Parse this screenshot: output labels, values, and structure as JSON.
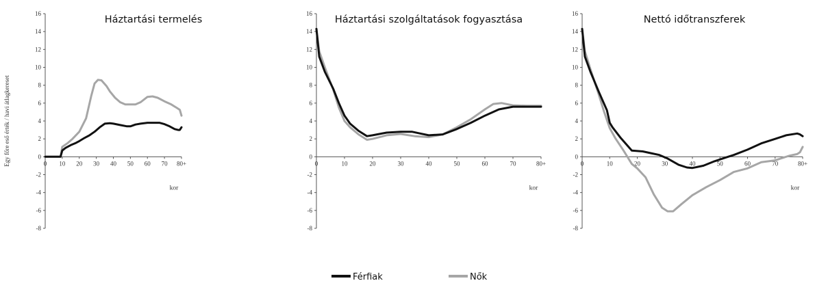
{
  "y_axis_label": "Egy főre eső érték / havi átlagkereset",
  "legend": [
    {
      "label": "Férfiak",
      "color": "#111111"
    },
    {
      "label": "Nők",
      "color": "#a6a6a6"
    }
  ],
  "chart_data": [
    {
      "type": "line",
      "title": "Háztartási termelés",
      "xlabel": "kor",
      "ylim": [
        -8,
        16
      ],
      "xlim": [
        0,
        80
      ],
      "x_ticks": [
        "0",
        "10",
        "20",
        "30",
        "40",
        "50",
        "60",
        "70",
        "80+"
      ],
      "y_ticks": [
        -8,
        -6,
        -4,
        -2,
        0,
        2,
        4,
        6,
        8,
        10,
        12,
        14,
        16
      ],
      "series": [
        {
          "name": "Férfiak",
          "color": "#111111",
          "x": [
            0,
            9,
            10,
            12,
            15,
            18,
            20,
            23,
            26,
            29,
            32,
            35,
            38,
            40,
            44,
            48,
            50,
            53,
            56,
            60,
            64,
            67,
            70,
            73,
            76,
            78,
            79,
            80
          ],
          "y": [
            0,
            0,
            0.7,
            1.0,
            1.3,
            1.55,
            1.75,
            2.1,
            2.4,
            2.8,
            3.3,
            3.7,
            3.75,
            3.7,
            3.55,
            3.4,
            3.4,
            3.6,
            3.7,
            3.8,
            3.8,
            3.8,
            3.65,
            3.4,
            3.1,
            3.0,
            3.0,
            3.3
          ]
        },
        {
          "name": "Nők",
          "color": "#a6a6a6",
          "x": [
            0,
            9,
            10,
            13,
            16,
            20,
            24,
            27,
            29,
            31,
            33,
            36,
            38,
            41,
            44,
            47,
            50,
            53,
            56,
            60,
            63,
            66,
            70,
            74,
            77,
            79,
            80
          ],
          "y": [
            0,
            0,
            1.1,
            1.5,
            2.0,
            2.8,
            4.3,
            6.8,
            8.2,
            8.6,
            8.55,
            7.9,
            7.3,
            6.6,
            6.1,
            5.85,
            5.85,
            5.85,
            6.1,
            6.7,
            6.75,
            6.6,
            6.2,
            5.85,
            5.5,
            5.25,
            4.6
          ]
        }
      ]
    },
    {
      "type": "line",
      "title": "Háztartási szolgáltatások fogyasztása",
      "xlabel": "kor",
      "ylim": [
        -8,
        16
      ],
      "xlim": [
        0,
        80
      ],
      "x_ticks": [
        "0",
        "10",
        "20",
        "30",
        "40",
        "50",
        "60",
        "70",
        "80+"
      ],
      "y_ticks": [
        -8,
        -6,
        -4,
        -2,
        0,
        2,
        4,
        6,
        8,
        10,
        12,
        14,
        16
      ],
      "series": [
        {
          "name": "Férfiak",
          "color": "#111111",
          "x": [
            0,
            1,
            3,
            6,
            8,
            10,
            12,
            15,
            18,
            20,
            25,
            30,
            34,
            37,
            40,
            45,
            50,
            55,
            60,
            65,
            70,
            75,
            80
          ],
          "y": [
            14.3,
            11.2,
            9.5,
            7.6,
            6.0,
            4.6,
            3.7,
            2.9,
            2.3,
            2.4,
            2.7,
            2.8,
            2.8,
            2.6,
            2.4,
            2.5,
            3.1,
            3.8,
            4.6,
            5.3,
            5.6,
            5.6,
            5.6
          ]
        },
        {
          "name": "Nők",
          "color": "#a6a6a6",
          "x": [
            0,
            1,
            3,
            6,
            8,
            10,
            12,
            15,
            18,
            20,
            25,
            30,
            35,
            40,
            45,
            50,
            55,
            60,
            63,
            66,
            70,
            75,
            80
          ],
          "y": [
            14.3,
            11.8,
            10.0,
            7.5,
            5.5,
            4.0,
            3.3,
            2.5,
            1.9,
            2.0,
            2.4,
            2.55,
            2.3,
            2.2,
            2.5,
            3.3,
            4.2,
            5.3,
            5.9,
            6.0,
            5.75,
            5.7,
            5.7
          ]
        }
      ]
    },
    {
      "type": "line",
      "title": "Nettó időtranszferek",
      "xlabel": "kor",
      "ylim": [
        -8,
        16
      ],
      "xlim": [
        0,
        80
      ],
      "x_ticks": [
        "0",
        "10",
        "20",
        "30",
        "40",
        "50",
        "60",
        "70",
        "80+"
      ],
      "y_ticks": [
        -8,
        -6,
        -4,
        -2,
        0,
        2,
        4,
        6,
        8,
        10,
        12,
        14,
        16
      ],
      "series": [
        {
          "name": "Férfiak",
          "color": "#111111",
          "x": [
            0,
            1,
            3,
            6,
            9,
            10,
            11,
            14,
            18,
            22,
            25,
            28,
            31,
            35,
            38,
            40,
            44,
            48,
            52,
            55,
            60,
            65,
            70,
            74,
            78,
            79,
            80
          ],
          "y": [
            14.3,
            11.2,
            9.5,
            7.3,
            5.2,
            3.8,
            3.3,
            2.1,
            0.7,
            0.6,
            0.4,
            0.2,
            -0.2,
            -0.9,
            -1.2,
            -1.25,
            -1.0,
            -0.5,
            -0.1,
            0.2,
            0.8,
            1.5,
            2.0,
            2.4,
            2.6,
            2.5,
            2.3
          ]
        },
        {
          "name": "Nők",
          "color": "#a6a6a6",
          "x": [
            0,
            1,
            3,
            6,
            8,
            10,
            12,
            15,
            18,
            20,
            23,
            26,
            29,
            31,
            33,
            36,
            40,
            45,
            50,
            55,
            60,
            65,
            70,
            75,
            78,
            79,
            80
          ],
          "y": [
            14.3,
            11.8,
            9.8,
            7.0,
            5.0,
            3.2,
            2.1,
            0.7,
            -0.8,
            -1.3,
            -2.3,
            -4.2,
            -5.7,
            -6.1,
            -6.1,
            -5.3,
            -4.3,
            -3.4,
            -2.6,
            -1.7,
            -1.3,
            -0.6,
            -0.4,
            0.1,
            0.3,
            0.5,
            1.1
          ]
        }
      ]
    }
  ]
}
